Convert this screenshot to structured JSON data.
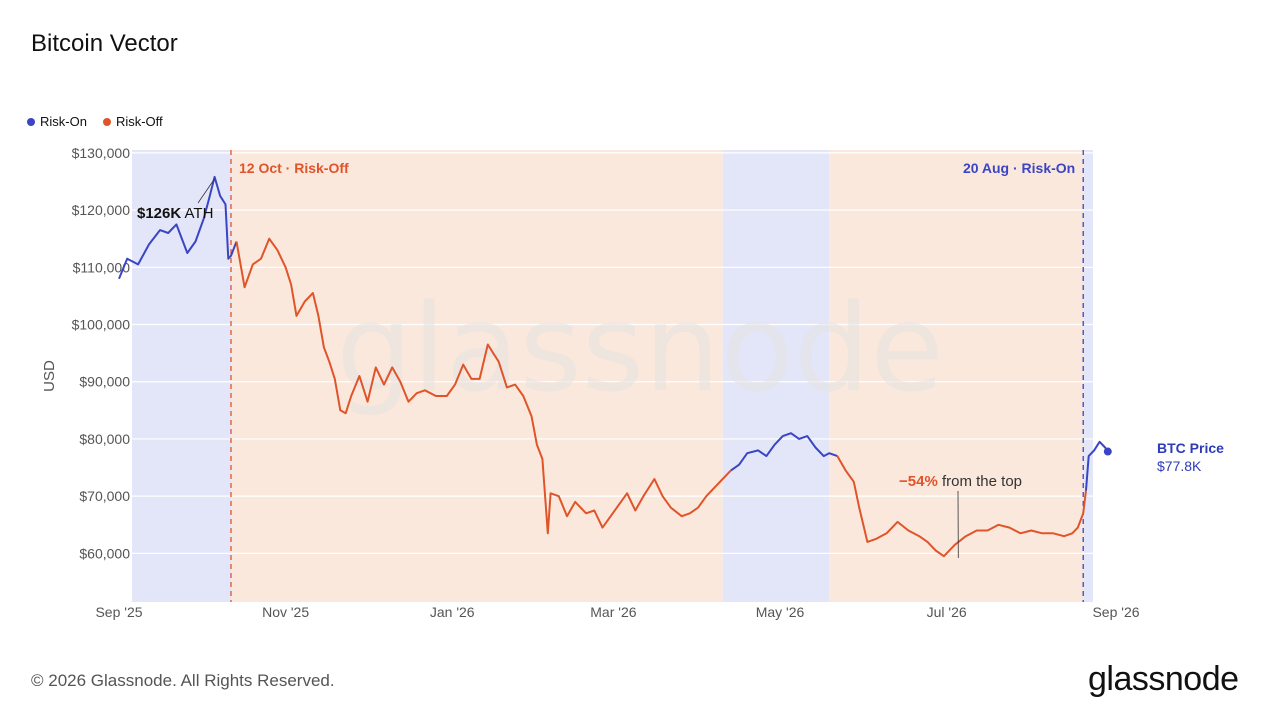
{
  "title": "Bitcoin Vector",
  "legend": [
    {
      "label": "Risk-On",
      "color": "#3a45c4"
    },
    {
      "label": "Risk-Off",
      "color": "#e0542a"
    }
  ],
  "colors": {
    "risk_on_line": "#3a45c4",
    "risk_off_line": "#e0542a",
    "risk_on_band": "#e3e6f8",
    "risk_off_band": "#fbe8dc",
    "watermark": "#e4e2e2"
  },
  "watermark": "glassnode",
  "side_label": {
    "name": "BTC Price",
    "value": "$77.8K"
  },
  "footer": "© 2026 Glassnode. All Rights Reserved.",
  "brand": "glassnode",
  "chart_data": {
    "type": "line",
    "ylabel": "USD",
    "ylim": [
      51500,
      130500
    ],
    "yticks": [
      60000,
      70000,
      80000,
      90000,
      100000,
      110000,
      120000,
      130000
    ],
    "ytick_labels": [
      "$60,000",
      "$70,000",
      "$80,000",
      "$90,000",
      "$100,000",
      "$110,000",
      "$120,000",
      "$130,000"
    ],
    "xlim": [
      "2025-09-01",
      "2026-09-01"
    ],
    "xticks": [
      "2025-09-01",
      "2025-11-01",
      "2026-01-01",
      "2026-03-01",
      "2026-05-01",
      "2026-07-01",
      "2026-09-01"
    ],
    "xtick_labels": [
      "Sep '25",
      "Nov '25",
      "Jan '26",
      "Mar '26",
      "May '26",
      "Jul '26",
      "Sep '26"
    ],
    "grid": true,
    "regimes": [
      {
        "state": "Risk-On",
        "start": "2025-09-01",
        "end": "2025-10-12"
      },
      {
        "state": "Risk-Off",
        "start": "2025-10-12",
        "end": "2026-04-10"
      },
      {
        "state": "Risk-On",
        "start": "2026-04-10",
        "end": "2026-05-19"
      },
      {
        "state": "Risk-Off",
        "start": "2026-05-19",
        "end": "2026-08-20"
      },
      {
        "state": "Risk-On",
        "start": "2026-08-20",
        "end": "2026-08-29"
      }
    ],
    "events": [
      {
        "date": "2025-10-12",
        "label": "12 Oct · Risk-Off",
        "state": "Risk-Off"
      },
      {
        "date": "2026-08-20",
        "label": "20 Aug · Risk-On",
        "state": "Risk-On"
      }
    ],
    "annotations": [
      {
        "bold": "$126K",
        "text": " ATH",
        "date": "2025-10-06",
        "price": 126000
      },
      {
        "bold": "−54%",
        "text": " from the top",
        "date": "2026-07-06",
        "price": 58500
      }
    ],
    "series": [
      {
        "points": [
          [
            "2025-09-01",
            108000
          ],
          [
            "2025-09-04",
            111500
          ],
          [
            "2025-09-08",
            110500
          ],
          [
            "2025-09-12",
            114000
          ],
          [
            "2025-09-16",
            116500
          ],
          [
            "2025-09-19",
            116000
          ],
          [
            "2025-09-22",
            117500
          ],
          [
            "2025-09-26",
            112500
          ],
          [
            "2025-09-29",
            114500
          ],
          [
            "2025-10-02",
            118500
          ],
          [
            "2025-10-04",
            122000
          ],
          [
            "2025-10-06",
            125800
          ],
          [
            "2025-10-08",
            122500
          ],
          [
            "2025-10-10",
            121000
          ],
          [
            "2025-10-11",
            111500
          ],
          [
            "2025-10-12",
            112000
          ],
          [
            "2025-10-14",
            114500
          ],
          [
            "2025-10-17",
            106500
          ],
          [
            "2025-10-20",
            110500
          ],
          [
            "2025-10-23",
            111500
          ],
          [
            "2025-10-26",
            115000
          ],
          [
            "2025-10-29",
            113000
          ],
          [
            "2025-11-01",
            110000
          ],
          [
            "2025-11-03",
            107000
          ],
          [
            "2025-11-05",
            101500
          ],
          [
            "2025-11-08",
            104000
          ],
          [
            "2025-11-11",
            105500
          ],
          [
            "2025-11-13",
            101500
          ],
          [
            "2025-11-15",
            96000
          ],
          [
            "2025-11-17",
            93500
          ],
          [
            "2025-11-19",
            90500
          ],
          [
            "2025-11-21",
            85000
          ],
          [
            "2025-11-23",
            84500
          ],
          [
            "2025-11-25",
            87500
          ],
          [
            "2025-11-28",
            91000
          ],
          [
            "2025-12-01",
            86500
          ],
          [
            "2025-12-04",
            92500
          ],
          [
            "2025-12-07",
            89500
          ],
          [
            "2025-12-10",
            92500
          ],
          [
            "2025-12-13",
            90000
          ],
          [
            "2025-12-16",
            86500
          ],
          [
            "2025-12-19",
            88000
          ],
          [
            "2025-12-22",
            88500
          ],
          [
            "2025-12-26",
            87500
          ],
          [
            "2025-12-30",
            87500
          ],
          [
            "2026-01-02",
            89500
          ],
          [
            "2026-01-05",
            93000
          ],
          [
            "2026-01-08",
            90500
          ],
          [
            "2026-01-11",
            90500
          ],
          [
            "2026-01-14",
            96500
          ],
          [
            "2026-01-16",
            95000
          ],
          [
            "2026-01-18",
            93500
          ],
          [
            "2026-01-21",
            89000
          ],
          [
            "2026-01-24",
            89500
          ],
          [
            "2026-01-27",
            87500
          ],
          [
            "2026-01-30",
            84000
          ],
          [
            "2026-02-01",
            79000
          ],
          [
            "2026-02-03",
            76500
          ],
          [
            "2026-02-05",
            63500
          ],
          [
            "2026-02-06",
            70500
          ],
          [
            "2026-02-09",
            70000
          ],
          [
            "2026-02-12",
            66500
          ],
          [
            "2026-02-15",
            69000
          ],
          [
            "2026-02-19",
            67000
          ],
          [
            "2026-02-22",
            67500
          ],
          [
            "2026-02-25",
            64500
          ],
          [
            "2026-02-28",
            66500
          ],
          [
            "2026-03-03",
            68500
          ],
          [
            "2026-03-06",
            70500
          ],
          [
            "2026-03-09",
            67500
          ],
          [
            "2026-03-12",
            70000
          ],
          [
            "2026-03-16",
            73000
          ],
          [
            "2026-03-19",
            70000
          ],
          [
            "2026-03-22",
            68000
          ],
          [
            "2026-03-26",
            66500
          ],
          [
            "2026-03-29",
            67000
          ],
          [
            "2026-04-01",
            68000
          ],
          [
            "2026-04-04",
            70000
          ],
          [
            "2026-04-07",
            71500
          ],
          [
            "2026-04-10",
            73000
          ],
          [
            "2026-04-13",
            74500
          ],
          [
            "2026-04-16",
            75500
          ],
          [
            "2026-04-19",
            77500
          ],
          [
            "2026-04-23",
            78000
          ],
          [
            "2026-04-26",
            77000
          ],
          [
            "2026-04-29",
            79000
          ],
          [
            "2026-05-02",
            80500
          ],
          [
            "2026-05-05",
            81000
          ],
          [
            "2026-05-08",
            80000
          ],
          [
            "2026-05-11",
            80500
          ],
          [
            "2026-05-14",
            78500
          ],
          [
            "2026-05-17",
            77000
          ],
          [
            "2026-05-19",
            77500
          ],
          [
            "2026-05-22",
            77000
          ],
          [
            "2026-05-25",
            74500
          ],
          [
            "2026-05-28",
            72500
          ],
          [
            "2026-05-30",
            68000
          ],
          [
            "2026-06-02",
            62000
          ],
          [
            "2026-06-05",
            62500
          ],
          [
            "2026-06-09",
            63500
          ],
          [
            "2026-06-13",
            65500
          ],
          [
            "2026-06-17",
            64000
          ],
          [
            "2026-06-21",
            63000
          ],
          [
            "2026-06-24",
            62000
          ],
          [
            "2026-06-27",
            60500
          ],
          [
            "2026-06-30",
            59500
          ],
          [
            "2026-07-04",
            61500
          ],
          [
            "2026-07-08",
            63000
          ],
          [
            "2026-07-12",
            64000
          ],
          [
            "2026-07-16",
            64000
          ],
          [
            "2026-07-20",
            65000
          ],
          [
            "2026-07-24",
            64500
          ],
          [
            "2026-07-28",
            63500
          ],
          [
            "2026-08-01",
            64000
          ],
          [
            "2026-08-05",
            63500
          ],
          [
            "2026-08-09",
            63500
          ],
          [
            "2026-08-13",
            63000
          ],
          [
            "2026-08-16",
            63500
          ],
          [
            "2026-08-18",
            64500
          ],
          [
            "2026-08-20",
            67000
          ],
          [
            "2026-08-21",
            71000
          ],
          [
            "2026-08-22",
            77000
          ],
          [
            "2026-08-24",
            78000
          ],
          [
            "2026-08-26",
            79500
          ],
          [
            "2026-08-28",
            78500
          ],
          [
            "2026-08-29",
            77800
          ]
        ]
      }
    ]
  }
}
